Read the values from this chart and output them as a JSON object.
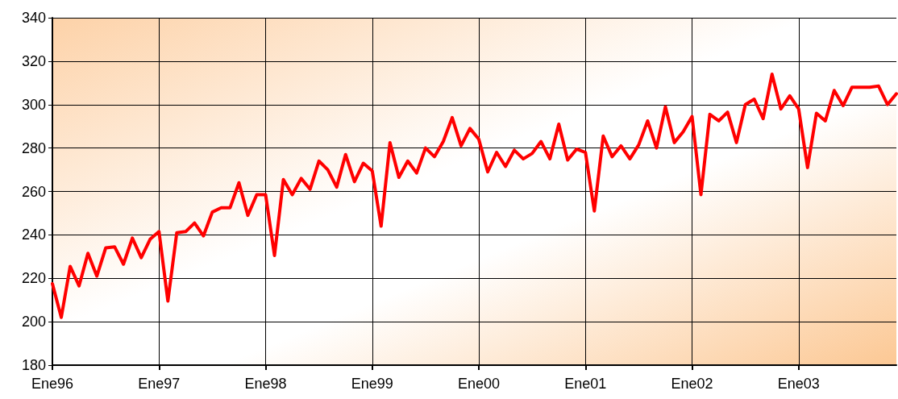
{
  "chart_data": {
    "type": "line",
    "categories": [
      "Ene96",
      null,
      null,
      null,
      null,
      null,
      null,
      null,
      null,
      null,
      null,
      null,
      "Ene97",
      null,
      null,
      null,
      null,
      null,
      null,
      null,
      null,
      null,
      null,
      null,
      "Ene98",
      null,
      null,
      null,
      null,
      null,
      null,
      null,
      null,
      null,
      null,
      null,
      "Ene99",
      null,
      null,
      null,
      null,
      null,
      null,
      null,
      null,
      null,
      null,
      null,
      "Ene00",
      null,
      null,
      null,
      null,
      null,
      null,
      null,
      null,
      null,
      null,
      null,
      "Ene01",
      null,
      null,
      null,
      null,
      null,
      null,
      null,
      null,
      null,
      null,
      null,
      "Ene02",
      null,
      null,
      null,
      null,
      null,
      null,
      null,
      null,
      null,
      null,
      null,
      "Ene03",
      null,
      null,
      null,
      null,
      null,
      null,
      null,
      null,
      null,
      null,
      null
    ],
    "series": [
      {
        "color": "#ff0000",
        "values": [
          217.5,
          202,
          225.5,
          216.5,
          231.5,
          221,
          234,
          234.5,
          226.5,
          238.5,
          229.5,
          238,
          241.5,
          209.5,
          241,
          241.5,
          245.5,
          239.5,
          250.5,
          252.5,
          252.5,
          264,
          249,
          258.5,
          258.5,
          230.5,
          265.5,
          258.5,
          266,
          261,
          274,
          270,
          262,
          277,
          264.5,
          273,
          269.5,
          244,
          282.5,
          266.5,
          274,
          268.5,
          280,
          276,
          283,
          294,
          281,
          289,
          284,
          269,
          278,
          271.5,
          279,
          275,
          277.5,
          283,
          275,
          291,
          274.5,
          279.5,
          278,
          251,
          285.5,
          276,
          281,
          275,
          281.5,
          292.5,
          280,
          299,
          282.5,
          287.5,
          294.5,
          258.5,
          295.5,
          292.5,
          296.5,
          282.5,
          300,
          302.5,
          293.5,
          314,
          298,
          304,
          298,
          271,
          296,
          292.5,
          306.5,
          299.5,
          308,
          308,
          308,
          308.5,
          300,
          305
        ]
      }
    ],
    "ylim": [
      180,
      340
    ],
    "yticks": [
      180,
      200,
      220,
      240,
      260,
      280,
      300,
      320,
      340
    ],
    "grid": true,
    "marker": "none",
    "line_style": "solid"
  }
}
